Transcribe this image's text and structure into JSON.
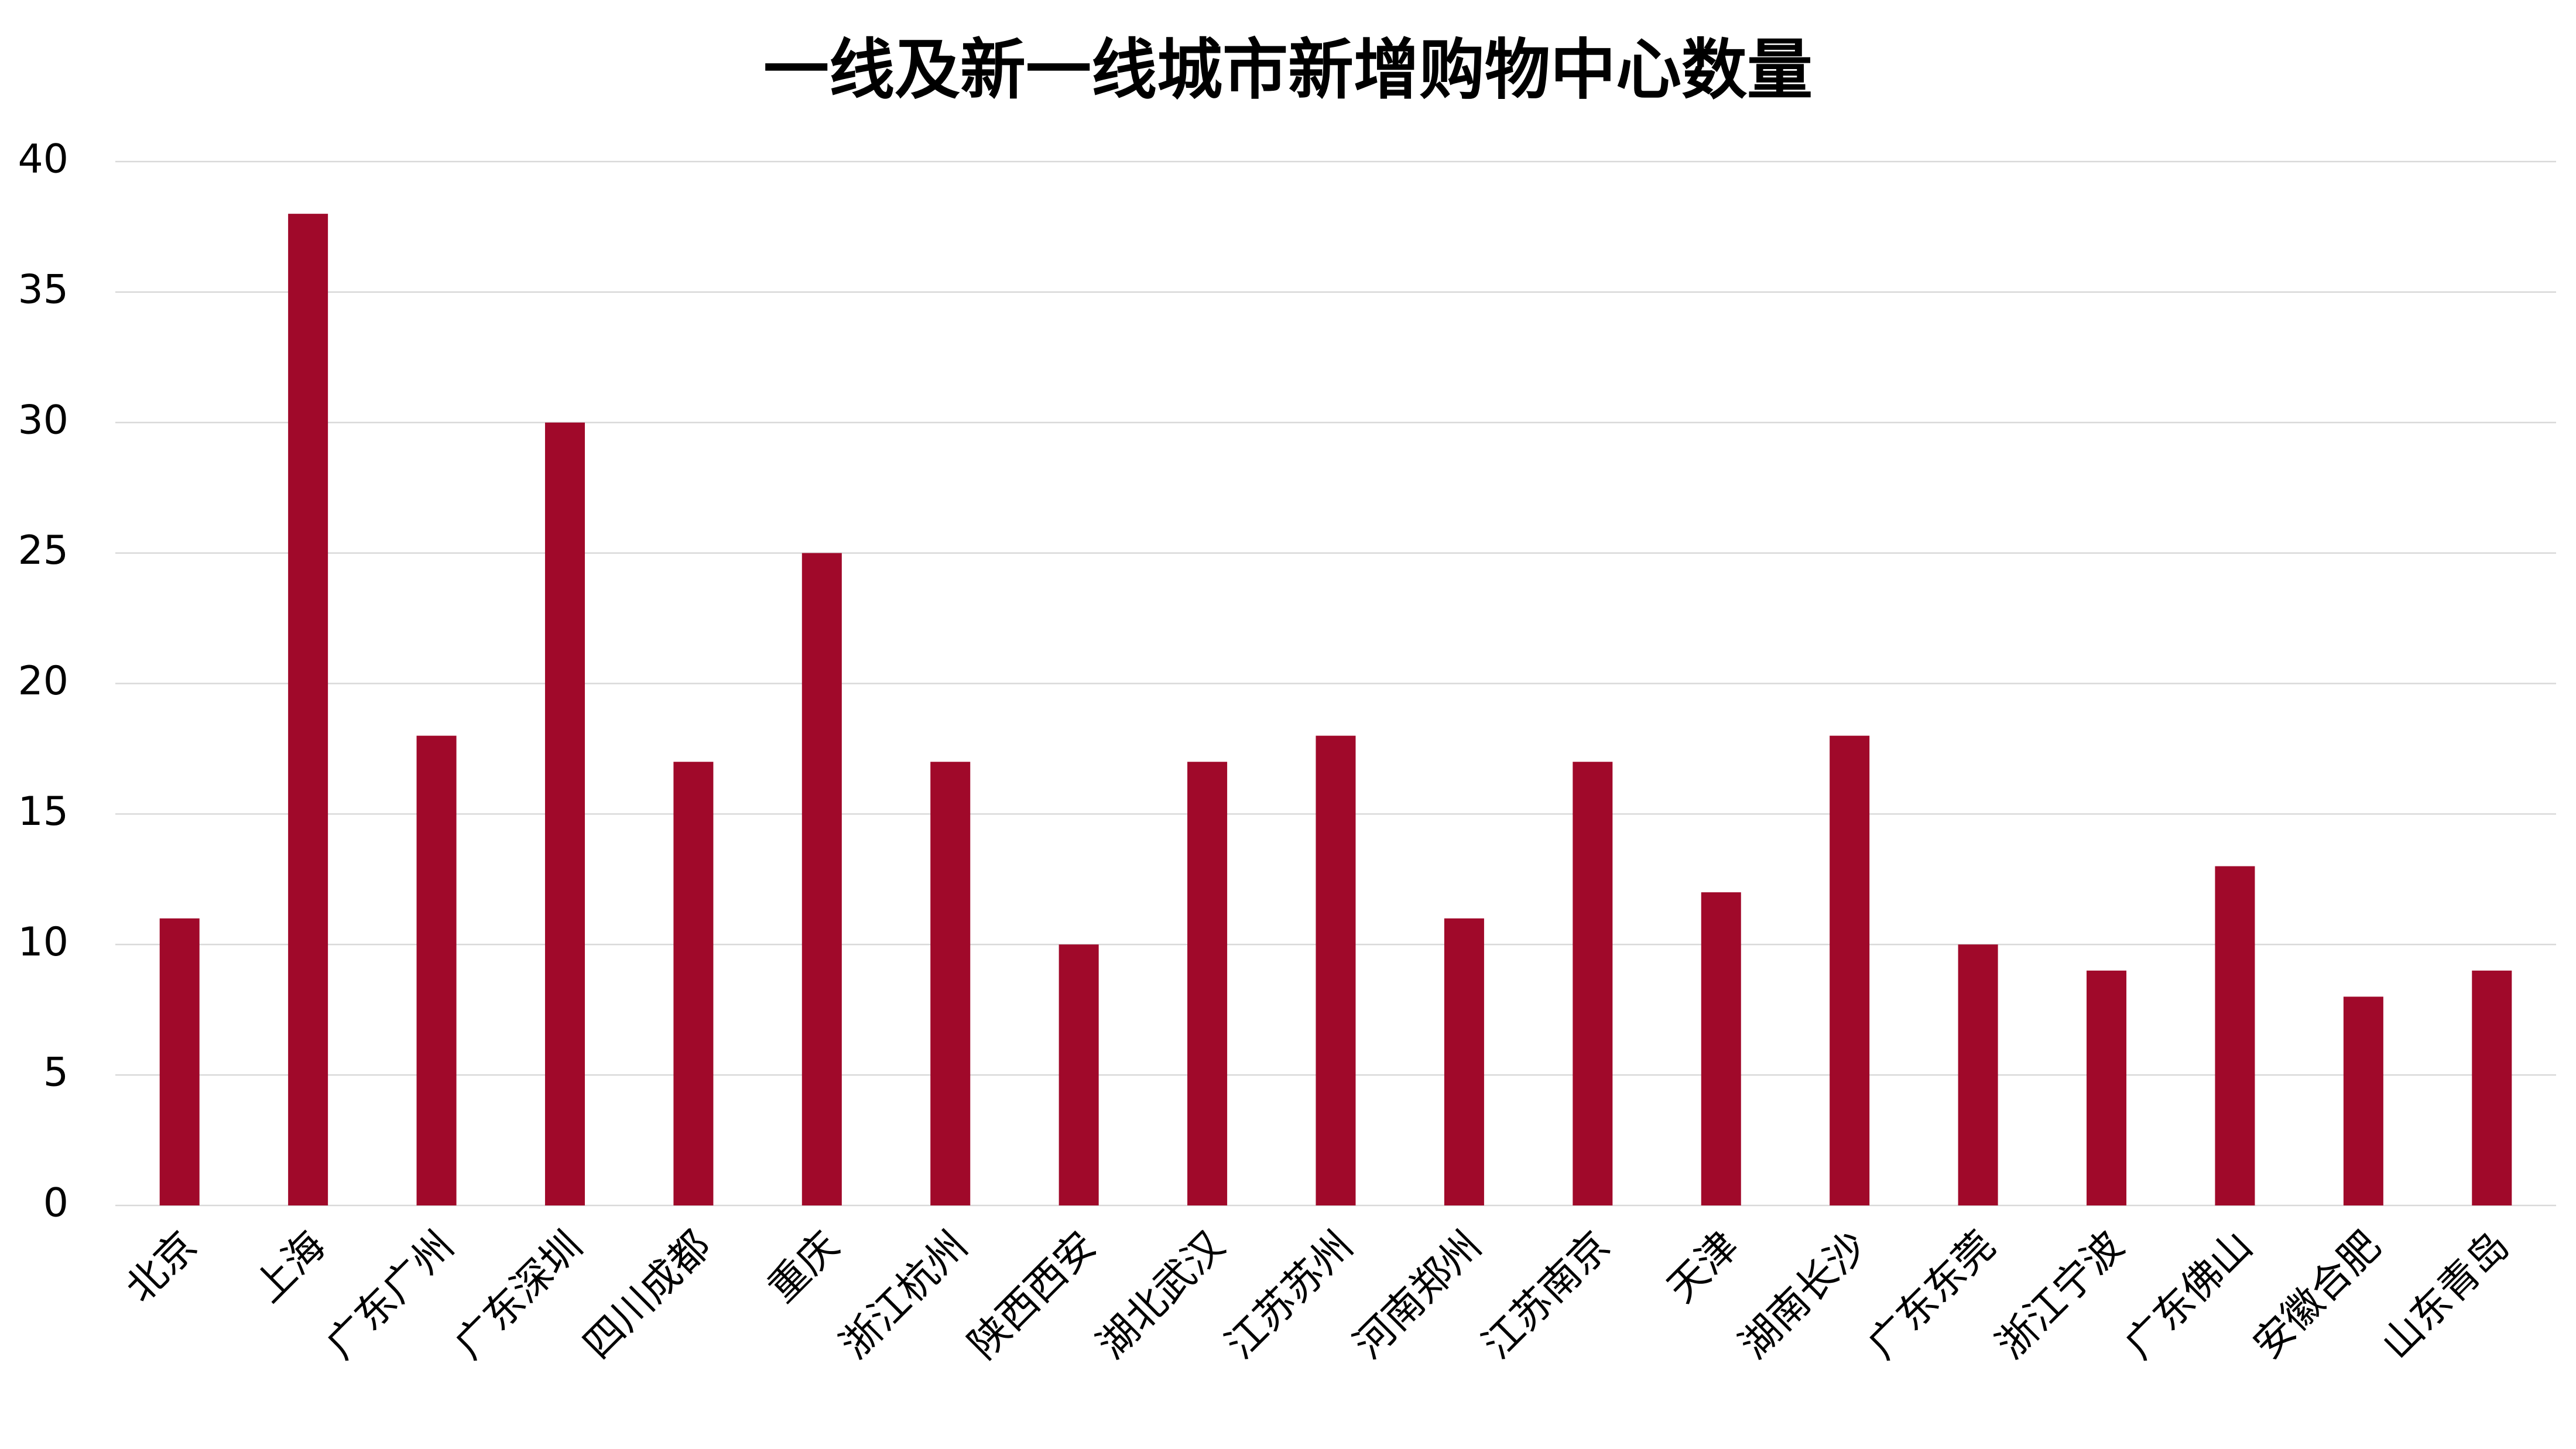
{
  "chart_data": {
    "type": "bar",
    "title": "一线及新一线城市新增购物中心数量",
    "categories": [
      "北京",
      "上海",
      "广东广州",
      "广东深圳",
      "四川成都",
      "重庆",
      "浙江杭州",
      "陕西西安",
      "湖北武汉",
      "江苏苏州",
      "河南郑州",
      "江苏南京",
      "天津",
      "湖南长沙",
      "广东东莞",
      "浙江宁波",
      "广东佛山",
      "安徽合肥",
      "山东青岛"
    ],
    "values": [
      11,
      38,
      18,
      30,
      17,
      25,
      17,
      10,
      17,
      18,
      11,
      17,
      12,
      18,
      10,
      9,
      13,
      8,
      9
    ],
    "color": "#a0092a",
    "ylim": [
      0,
      40
    ],
    "yticks": [
      0,
      5,
      10,
      15,
      20,
      25,
      30,
      35,
      40
    ],
    "grid": true
  }
}
